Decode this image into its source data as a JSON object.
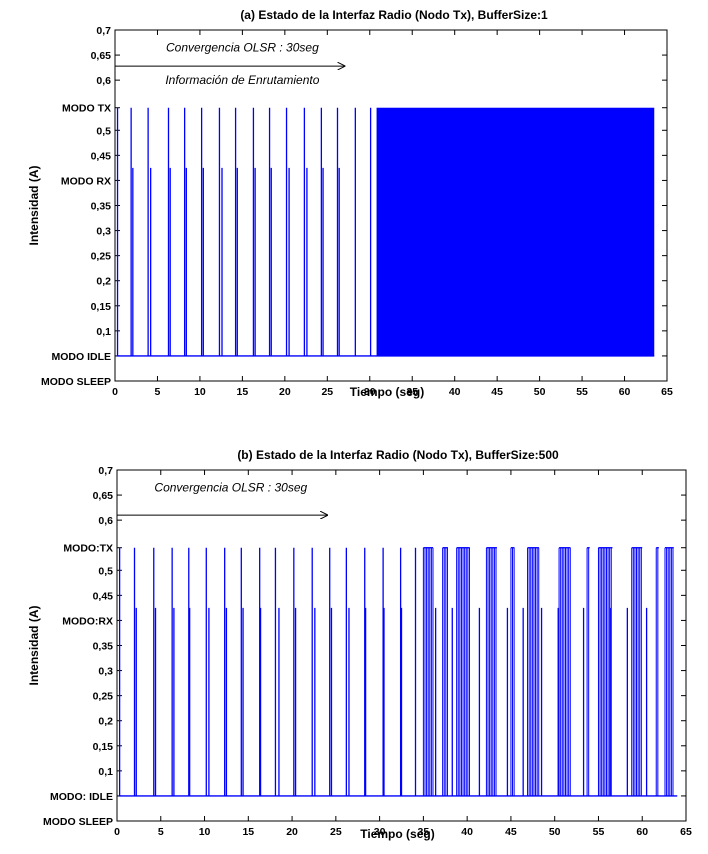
{
  "chart_data": [
    {
      "type": "line",
      "title": "(a) Estado de la Interfaz Radio (Nodo Tx), BufferSize:1",
      "xlabel": "Tiempo (seg)",
      "ylabel": "Intensidad (A)",
      "xlim": [
        0,
        65
      ],
      "ylim": [
        0,
        0.7
      ],
      "x_ticks": [
        0,
        5,
        10,
        15,
        20,
        25,
        30,
        35,
        40,
        45,
        50,
        55,
        60,
        65
      ],
      "y_tick_labels": [
        {
          "value": 0.7,
          "label": "0,7"
        },
        {
          "value": 0.65,
          "label": "0,65"
        },
        {
          "value": 0.6,
          "label": "0,6"
        },
        {
          "value": 0.545,
          "label": "MODO TX"
        },
        {
          "value": 0.5,
          "label": "0,5"
        },
        {
          "value": 0.45,
          "label": "0,45"
        },
        {
          "value": 0.4,
          "label": "MODO RX"
        },
        {
          "value": 0.35,
          "label": "0,35"
        },
        {
          "value": 0.3,
          "label": "0,3"
        },
        {
          "value": 0.25,
          "label": "0,25"
        },
        {
          "value": 0.2,
          "label": "0,2"
        },
        {
          "value": 0.15,
          "label": "0,15"
        },
        {
          "value": 0.1,
          "label": "0,1"
        },
        {
          "value": 0.05,
          "label": "MODO IDLE"
        },
        {
          "value": 0.0,
          "label": "MODO SLEEP"
        }
      ],
      "levels": {
        "idle": 0.05,
        "rx": 0.425,
        "tx": 0.545
      },
      "tx_spikes": [
        0.3,
        1.9,
        3.9,
        6.3,
        8.2,
        10.2,
        12.3,
        14.2,
        16.3,
        18.2,
        20.2,
        22.3,
        24.3,
        26.2,
        28.3,
        30.1
      ],
      "rx_spikes": [
        2.1,
        4.2,
        6.5,
        8.4,
        10.4,
        12.6,
        14.4,
        16.5,
        18.4,
        20.5,
        22.6,
        24.5,
        26.4
      ],
      "dense_region": [
        30.8,
        63.5
      ],
      "annotations": [
        {
          "text": "Convergencia OLSR : 30seg",
          "x": 15,
          "y": 0.665
        },
        {
          "text": "Información de Enrutamiento",
          "x": 15,
          "y": 0.6
        },
        {
          "arrow_from": [
            0,
            0.628
          ],
          "arrow_to": [
            27,
            0.628
          ]
        }
      ],
      "series_color": "#0000FF"
    },
    {
      "type": "line",
      "title": "(b) Estado de la Interfaz Radio (Nodo Tx), BufferSize:500",
      "xlabel": "Tiempo (seg)",
      "ylabel": "Intensidad (A)",
      "xlim": [
        0,
        65
      ],
      "ylim": [
        0,
        0.7
      ],
      "x_ticks": [
        0,
        5,
        10,
        15,
        20,
        25,
        30,
        35,
        40,
        45,
        50,
        55,
        60,
        65
      ],
      "y_tick_labels": [
        {
          "value": 0.7,
          "label": "0,7"
        },
        {
          "value": 0.65,
          "label": "0,65"
        },
        {
          "value": 0.6,
          "label": "0,6"
        },
        {
          "value": 0.545,
          "label": "MODO:TX"
        },
        {
          "value": 0.5,
          "label": "0,5"
        },
        {
          "value": 0.45,
          "label": "0,45"
        },
        {
          "value": 0.4,
          "label": "MODO:RX"
        },
        {
          "value": 0.35,
          "label": "0,35"
        },
        {
          "value": 0.3,
          "label": "0,3"
        },
        {
          "value": 0.25,
          "label": "0,25"
        },
        {
          "value": 0.2,
          "label": "0,2"
        },
        {
          "value": 0.15,
          "label": "0,15"
        },
        {
          "value": 0.1,
          "label": "0,1"
        },
        {
          "value": 0.05,
          "label": "MODO: IDLE"
        },
        {
          "value": 0.0,
          "label": "MODO SLEEP"
        }
      ],
      "levels": {
        "idle": 0.05,
        "rx": 0.425,
        "tx": 0.545
      },
      "tx_spikes": [
        0.3,
        2.0,
        4.2,
        6.3,
        8.2,
        10.2,
        12.3,
        14.2,
        16.3,
        18.1,
        20.2,
        22.3,
        24.3,
        26.2,
        28.3,
        30.4,
        32.4,
        34.1
      ],
      "rx_spikes": [
        2.2,
        4.4,
        6.5,
        8.3,
        10.5,
        12.5,
        14.4,
        16.4,
        18.5,
        20.4,
        22.6,
        24.5,
        26.5,
        28.4,
        30.5,
        32.5,
        36.4,
        38.3,
        41.4,
        44.6,
        46.4,
        48.5,
        50.4,
        53.3,
        56.4,
        58.3,
        60.5
      ],
      "burst_regions": [
        [
          35.0,
          36.1
        ],
        [
          37.2,
          37.8
        ],
        [
          38.8,
          40.3
        ],
        [
          42.2,
          43.4
        ],
        [
          45.0,
          45.4
        ],
        [
          46.9,
          48.2
        ],
        [
          50.5,
          51.8
        ],
        [
          53.7,
          54.0
        ],
        [
          55.0,
          56.6
        ],
        [
          58.8,
          60.0
        ],
        [
          61.6,
          61.9
        ],
        [
          62.6,
          63.6
        ]
      ],
      "annotations": [
        {
          "text": "Convergencia OLSR : 30seg",
          "x": 13,
          "y": 0.665
        },
        {
          "arrow_from": [
            0,
            0.61
          ],
          "arrow_to": [
            24,
            0.61
          ]
        }
      ],
      "series_color": "#0000FF"
    }
  ]
}
